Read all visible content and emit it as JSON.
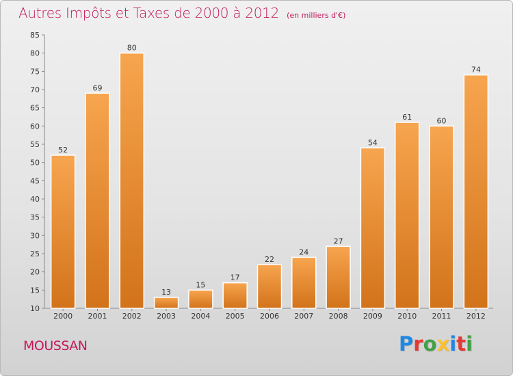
{
  "title": "Autres Impôts et Taxes de 2000 à 2012",
  "unit": "(en milliers d'€)",
  "commune": "MOUSSAN",
  "logo": {
    "letters": [
      "P",
      "r",
      "o",
      "x",
      "i",
      "t",
      "i"
    ],
    "colors": [
      "#1e88e5",
      "#e53935",
      "#43a047",
      "#fbc02d",
      "#1e88e5",
      "#e53935",
      "#43a047"
    ]
  },
  "colors": {
    "title": "#c2185b",
    "bar_top": "#f7a54f",
    "bar_bottom": "#d2731a"
  },
  "chart_data": {
    "type": "bar",
    "categories": [
      "2000",
      "2001",
      "2002",
      "2003",
      "2004",
      "2005",
      "2006",
      "2007",
      "2008",
      "2009",
      "2010",
      "2011",
      "2012"
    ],
    "values": [
      52,
      69,
      80,
      13,
      15,
      17,
      22,
      24,
      27,
      54,
      61,
      60,
      74
    ],
    "ylim": [
      10,
      85
    ],
    "yticks": [
      10,
      15,
      20,
      25,
      30,
      35,
      40,
      45,
      50,
      55,
      60,
      65,
      70,
      75,
      80,
      85
    ],
    "grid": false,
    "legend": "none",
    "xlabel": "",
    "ylabel": ""
  }
}
